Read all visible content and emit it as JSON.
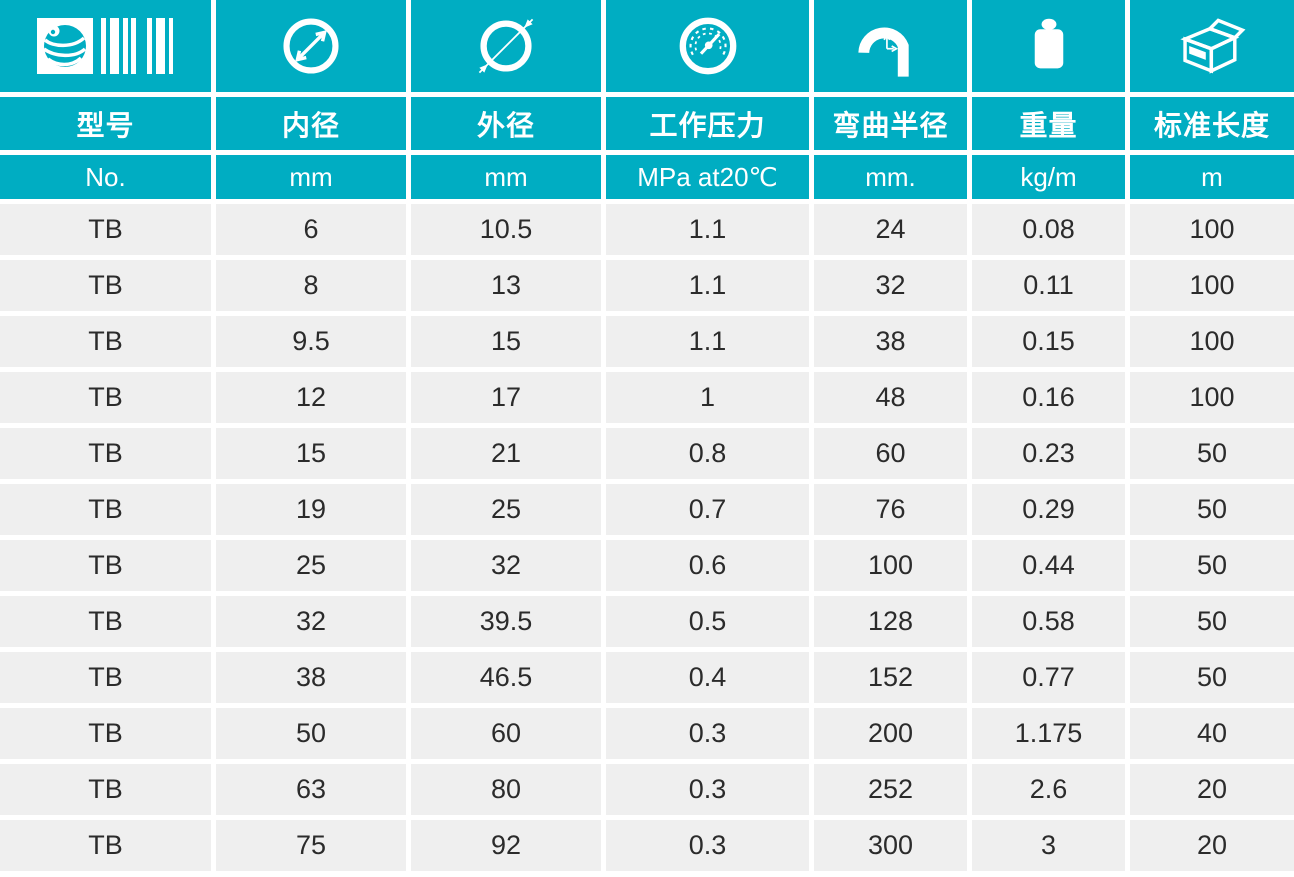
{
  "table": {
    "columns": [
      {
        "icon": "logo-barcode",
        "label": "型号",
        "unit": "No."
      },
      {
        "icon": "inner-diameter",
        "label": "内径",
        "unit": "mm"
      },
      {
        "icon": "outer-diameter",
        "label": "外径",
        "unit": "mm"
      },
      {
        "icon": "pressure-gauge",
        "label": "工作压力",
        "unit": "MPa at20℃"
      },
      {
        "icon": "bend-radius",
        "label": "弯曲半径",
        "unit": "mm."
      },
      {
        "icon": "weight",
        "label": "重量",
        "unit": "kg/m"
      },
      {
        "icon": "carton-box",
        "label": "标准长度",
        "unit": "m"
      }
    ],
    "rows": [
      [
        "TB",
        "6",
        "10.5",
        "1.1",
        "24",
        "0.08",
        "100"
      ],
      [
        "TB",
        "8",
        "13",
        "1.1",
        "32",
        "0.11",
        "100"
      ],
      [
        "TB",
        "9.5",
        "15",
        "1.1",
        "38",
        "0.15",
        "100"
      ],
      [
        "TB",
        "12",
        "17",
        "1",
        "48",
        "0.16",
        "100"
      ],
      [
        "TB",
        "15",
        "21",
        "0.8",
        "60",
        "0.23",
        "50"
      ],
      [
        "TB",
        "19",
        "25",
        "0.7",
        "76",
        "0.29",
        "50"
      ],
      [
        "TB",
        "25",
        "32",
        "0.6",
        "100",
        "0.44",
        "50"
      ],
      [
        "TB",
        "32",
        "39.5",
        "0.5",
        "128",
        "0.58",
        "50"
      ],
      [
        "TB",
        "38",
        "46.5",
        "0.4",
        "152",
        "0.77",
        "50"
      ],
      [
        "TB",
        "50",
        "60",
        "0.3",
        "200",
        "1.175",
        "40"
      ],
      [
        "TB",
        "63",
        "80",
        "0.3",
        "252",
        "2.6",
        "20"
      ],
      [
        "TB",
        "75",
        "92",
        "0.3",
        "300",
        "3",
        "20"
      ]
    ]
  },
  "colors": {
    "teal": "#00adc2",
    "row_background": "#efefef",
    "data_text": "#2b2b2b",
    "separator": "#ffffff",
    "header_text": "#ffffff"
  }
}
